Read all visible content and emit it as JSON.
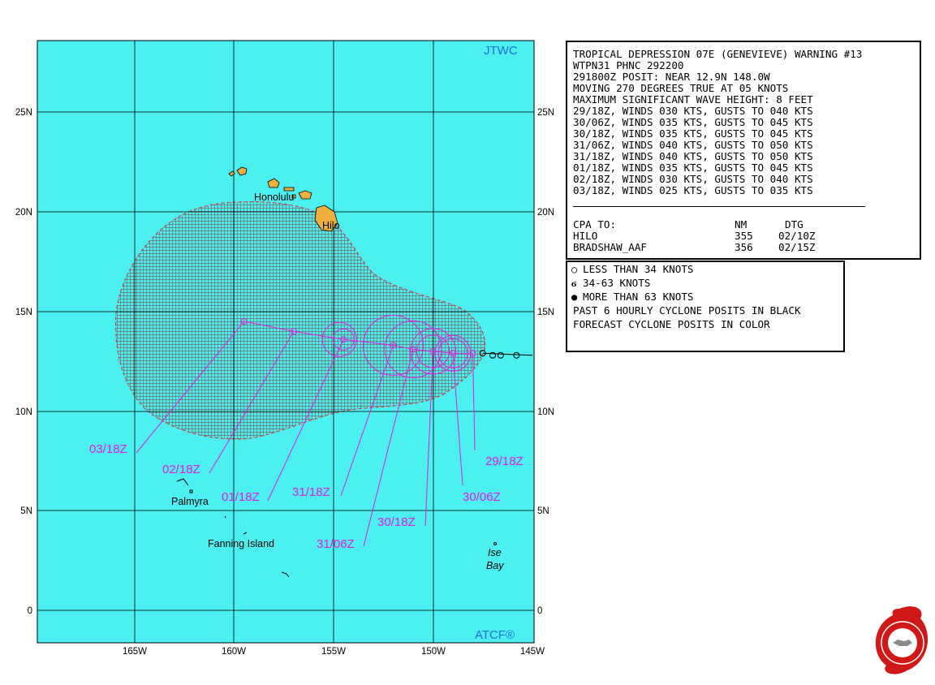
{
  "header": {
    "title": "TROPICAL DEPRESSION 07E (GENEVIEVE) WARNING #13",
    "wtpn": "WTPN31 PHNC 292200",
    "posit": "291800Z POSIT: NEAR 12.9N 148.0W",
    "moving": "MOVING 270 DEGREES TRUE AT 05 KNOTS",
    "wave": "MAXIMUM SIGNIFICANT WAVE HEIGHT: 8 FEET"
  },
  "forecast_lines": [
    "29/18Z, WINDS 030 KTS, GUSTS TO 040 KTS",
    "30/06Z, WINDS 035 KTS, GUSTS TO 045 KTS",
    "30/18Z, WINDS 035 KTS, GUSTS TO 045 KTS",
    "31/06Z, WINDS 040 KTS, GUSTS TO 050 KTS",
    "31/18Z, WINDS 040 KTS, GUSTS TO 050 KTS",
    "01/18Z, WINDS 035 KTS, GUSTS TO 045 KTS",
    "02/18Z, WINDS 030 KTS, GUSTS TO 040 KTS",
    "03/18Z, WINDS 025 KTS, GUSTS TO 035 KTS"
  ],
  "cpa": {
    "header": [
      "CPA TO:",
      "NM",
      "DTG"
    ],
    "rows": [
      {
        "place": "HILO",
        "nm": "355",
        "dtg": "02/10Z"
      },
      {
        "place": "BRADSHAW_AAF",
        "nm": "356",
        "dtg": "02/15Z"
      }
    ]
  },
  "legend": {
    "lt34": "LESS THAN 34 KNOTS",
    "r34_63": "34-63 KNOTS",
    "gt63": "MORE THAN 63 KNOTS",
    "past": "PAST 6 HOURLY CYCLONE POSITS IN BLACK",
    "forecast": "FORECAST CYCLONE POSITS IN COLOR"
  },
  "map": {
    "brand_top": "JTWC",
    "brand_bottom": "ATCF®",
    "lat_labels": [
      "25N",
      "20N",
      "15N",
      "10N",
      "5N",
      "0"
    ],
    "lon_labels": [
      "165W",
      "160W",
      "155W",
      "150W",
      "145W"
    ],
    "places": {
      "honolulu": "Honolulu",
      "hilo": "Hilo",
      "palmyra": "Palmyra",
      "fanning": "Fanning Island",
      "ise": "Ise",
      "bay": "Bay"
    },
    "colors": {
      "ocean": "#4cf0f0",
      "land": "#f0b040",
      "forecast": "#e020e0",
      "danger_line": "#e03030",
      "grid": "#000000"
    },
    "forecast_track": [
      {
        "label": "29/18Z",
        "lat": 12.9,
        "lon": -148.0
      },
      {
        "label": "30/06Z",
        "lat": 12.9,
        "lon": -149.0
      },
      {
        "label": "30/18Z",
        "lat": 13.0,
        "lon": -150.0
      },
      {
        "label": "31/06Z",
        "lat": 13.1,
        "lon": -151.0
      },
      {
        "label": "31/18Z",
        "lat": 13.3,
        "lon": -152.0
      },
      {
        "label": "01/18Z",
        "lat": 13.6,
        "lon": -154.5
      },
      {
        "label": "02/18Z",
        "lat": 14.0,
        "lon": -157.0
      },
      {
        "label": "03/18Z",
        "lat": 14.5,
        "lon": -159.5
      }
    ],
    "past_track": [
      {
        "lat": 12.9,
        "lon": -147.5
      },
      {
        "lat": 12.8,
        "lon": -147.0
      },
      {
        "lat": 12.8,
        "lon": -146.6
      },
      {
        "lat": 12.8,
        "lon": -145.8
      }
    ]
  }
}
